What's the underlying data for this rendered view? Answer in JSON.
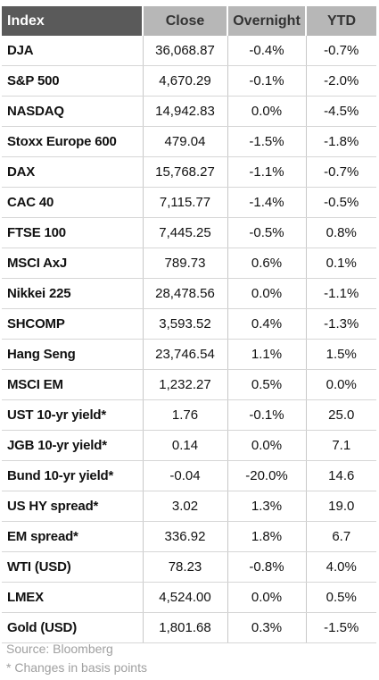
{
  "headers": {
    "index": "Index",
    "close": "Close",
    "overnight": "Overnight",
    "ytd": "YTD"
  },
  "rows": [
    {
      "index": "DJA",
      "close": "36,068.87",
      "overnight": "-0.4%",
      "ytd": "-0.7%"
    },
    {
      "index": "S&P 500",
      "close": "4,670.29",
      "overnight": "-0.1%",
      "ytd": "-2.0%"
    },
    {
      "index": "NASDAQ",
      "close": "14,942.83",
      "overnight": "0.0%",
      "ytd": "-4.5%"
    },
    {
      "index": "Stoxx Europe 600",
      "close": "479.04",
      "overnight": "-1.5%",
      "ytd": "-1.8%"
    },
    {
      "index": "DAX",
      "close": "15,768.27",
      "overnight": "-1.1%",
      "ytd": "-0.7%"
    },
    {
      "index": "CAC 40",
      "close": "7,115.77",
      "overnight": "-1.4%",
      "ytd": "-0.5%"
    },
    {
      "index": "FTSE 100",
      "close": "7,445.25",
      "overnight": "-0.5%",
      "ytd": "0.8%"
    },
    {
      "index": "MSCI AxJ",
      "close": "789.73",
      "overnight": "0.6%",
      "ytd": "0.1%"
    },
    {
      "index": "Nikkei 225",
      "close": "28,478.56",
      "overnight": "0.0%",
      "ytd": "-1.1%"
    },
    {
      "index": "SHCOMP",
      "close": "3,593.52",
      "overnight": "0.4%",
      "ytd": "-1.3%"
    },
    {
      "index": "Hang Seng",
      "close": "23,746.54",
      "overnight": "1.1%",
      "ytd": "1.5%"
    },
    {
      "index": "MSCI EM",
      "close": "1,232.27",
      "overnight": "0.5%",
      "ytd": "0.0%"
    },
    {
      "index": "UST 10-yr yield*",
      "close": "1.76",
      "overnight": "-0.1%",
      "ytd": "25.0"
    },
    {
      "index": "JGB 10-yr yield*",
      "close": "0.14",
      "overnight": "0.0%",
      "ytd": "7.1"
    },
    {
      "index": "Bund 10-yr yield*",
      "close": "-0.04",
      "overnight": "-20.0%",
      "ytd": "14.6"
    },
    {
      "index": "US HY spread*",
      "close": "3.02",
      "overnight": "1.3%",
      "ytd": "19.0"
    },
    {
      "index": "EM spread*",
      "close": "336.92",
      "overnight": "1.8%",
      "ytd": "6.7"
    },
    {
      "index": "WTI (USD)",
      "close": "78.23",
      "overnight": "-0.8%",
      "ytd": "4.0%"
    },
    {
      "index": "LMEX",
      "close": "4,524.00",
      "overnight": "0.0%",
      "ytd": "0.5%"
    },
    {
      "index": "Gold (USD)",
      "close": "1,801.68",
      "overnight": "0.3%",
      "ytd": "-1.5%"
    }
  ],
  "notes": {
    "source": "Source: Bloomberg",
    "footnote": "* Changes in basis points"
  },
  "colors": {
    "header_dark": "#5a5a5a",
    "header_light": "#b7b7b7",
    "row_divider": "#d6d6d6",
    "note_text": "#a0a0a0"
  }
}
